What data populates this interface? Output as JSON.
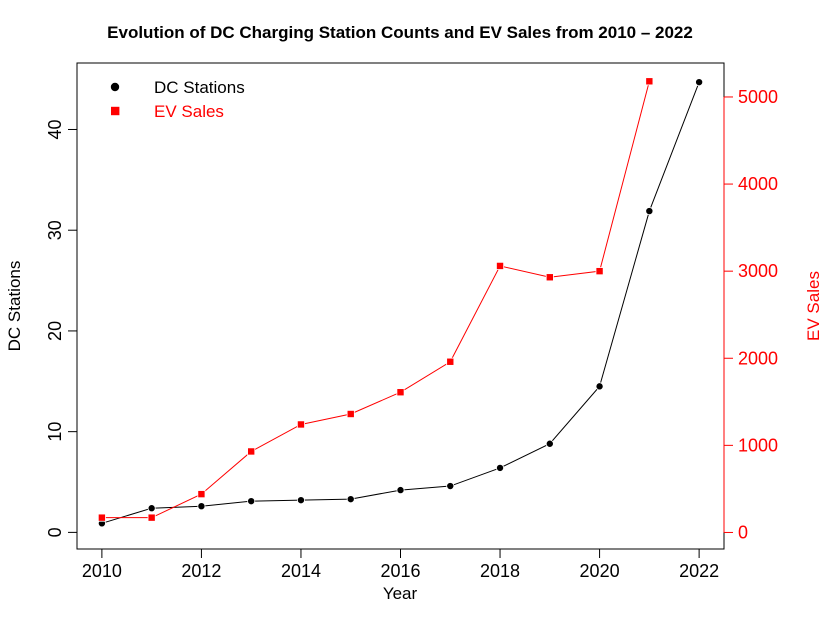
{
  "chart_data": {
    "type": "line",
    "title": "Evolution of DC Charging Station Counts and EV Sales from 2010 – 2022",
    "xlabel": "Year",
    "ylabel_left": "DC Stations",
    "ylabel_right": "EV Sales",
    "x": [
      2010,
      2011,
      2012,
      2013,
      2014,
      2015,
      2016,
      2017,
      2018,
      2019,
      2020,
      2021,
      2022
    ],
    "xlim": [
      2009.5,
      2022.5
    ],
    "x_ticks": [
      2010,
      2012,
      2014,
      2016,
      2018,
      2020,
      2022
    ],
    "ylim_left": [
      -1.65,
      46.6
    ],
    "ylim_right": [
      -190,
      5390
    ],
    "y_ticks_left": [
      0,
      10,
      20,
      30,
      40
    ],
    "y_ticks_right": [
      0,
      1000,
      2000,
      3000,
      4000,
      5000
    ],
    "grid": false,
    "legend_position": "top-left",
    "series": [
      {
        "name": "DC Stations",
        "axis": "left",
        "color": "#000000",
        "marker": "circle",
        "values": [
          0.9,
          2.4,
          2.6,
          3.1,
          3.2,
          3.3,
          4.2,
          4.6,
          6.4,
          8.8,
          14.5,
          31.9,
          44.7
        ]
      },
      {
        "name": "EV Sales",
        "axis": "right",
        "color": "#ff0000",
        "marker": "square",
        "values": [
          170,
          170,
          440,
          930,
          1240,
          1360,
          1610,
          1960,
          3060,
          2930,
          3000,
          5180,
          null
        ]
      }
    ]
  }
}
